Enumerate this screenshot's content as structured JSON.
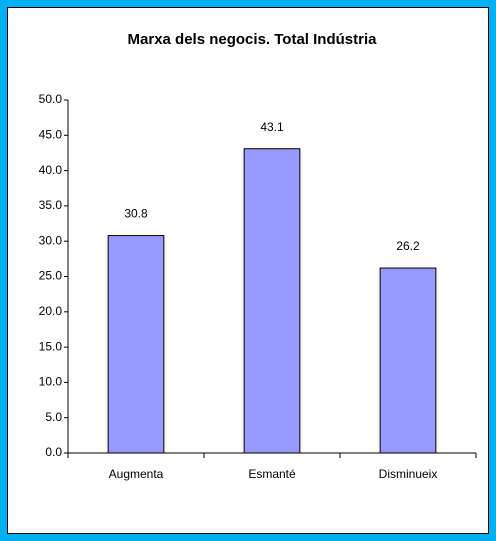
{
  "chart_data": {
    "type": "bar",
    "title": "Marxa dels negocis. Total Indústria",
    "categories": [
      "Augmenta",
      "Esmanté",
      "Disminueix"
    ],
    "values": [
      30.8,
      43.1,
      26.2
    ],
    "color": "#9999ff",
    "ylim": [
      0,
      50
    ],
    "yticks": [
      {
        "value": 0,
        "label": "0.0"
      },
      {
        "value": 5,
        "label": "5.0"
      },
      {
        "value": 10,
        "label": "10.0"
      },
      {
        "value": 15,
        "label": "15.0"
      },
      {
        "value": 20,
        "label": "20.0"
      },
      {
        "value": 25,
        "label": "25.0"
      },
      {
        "value": 30,
        "label": "30.0"
      },
      {
        "value": 35,
        "label": "35.0"
      },
      {
        "value": 40,
        "label": "40.0"
      },
      {
        "value": 45,
        "label": "45.0"
      },
      {
        "value": 50,
        "label": "50.0"
      }
    ],
    "grid": false
  }
}
